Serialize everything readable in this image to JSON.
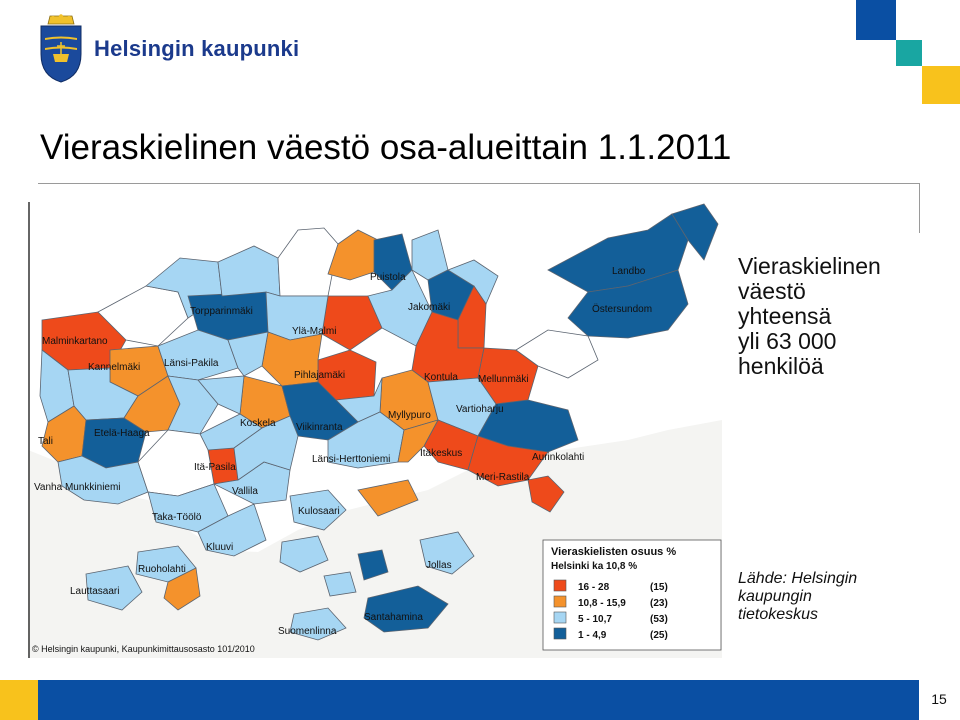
{
  "header": {
    "brand": "Helsingin kaupunki",
    "logo_icon": "helsinki-coat-of-arms-icon"
  },
  "title": "Vieraskielinen väestö osa-alueittain 1.1.2011",
  "map": {
    "districts": [
      "Puistola",
      "Landbo",
      "Torpparinmäki",
      "Jakomäki",
      "Östersundom",
      "Malminkartano",
      "Ylä-Malmi",
      "Kannelmäki",
      "Länsi-Pakila",
      "Pihlajamäki",
      "Kontula",
      "Mellunmäki",
      "Myllypuro",
      "Vartioharju",
      "Koskela",
      "Viikinranta",
      "Tali",
      "Etelä-Haaga",
      "Itäkeskus",
      "Länsi-Herttoniemi",
      "Aurinkolahti",
      "Itä-Pasila",
      "Meri-Rastila",
      "Vanha Munkkiniemi",
      "Vallila",
      "Kulosaari",
      "Taka-Töölö",
      "Kluuvi",
      "Jollas",
      "Ruoholahti",
      "Lauttasaari",
      "Santahamina",
      "Suomenlinna"
    ],
    "credit": "© Helsingin kaupunki, Kaupunkimittausosasto 101/2010",
    "legend": {
      "title": "Vieraskielisten osuus %",
      "subtitle": "Helsinki ka 10,8 %",
      "classes": [
        {
          "range": "16   - 28",
          "count": "(15)",
          "color": "#ee4a1b"
        },
        {
          "range": "10,8 - 15,9",
          "count": "(23)",
          "color": "#f4922c"
        },
        {
          "range": "5    - 10,7",
          "count": "(53)",
          "color": "#a6d6f3"
        },
        {
          "range": "1    - 4,9",
          "count": "(25)",
          "color": "#135f99"
        }
      ]
    },
    "colors": {
      "sea": "#f4f4f2",
      "background": "#ffffff",
      "border": "#5b6470"
    }
  },
  "callout": {
    "lines": [
      "Vieraskielinen",
      "väestö",
      "yhteensä",
      "yli 63 000",
      "henkilöä"
    ]
  },
  "source": {
    "lines": [
      "Lähde: Helsingin",
      "kaupungin",
      "tietokeskus"
    ]
  },
  "footer": {
    "page_number": "15"
  },
  "colors": {
    "brand_blue": "#0a4fa3",
    "accent_yellow": "#f8c21c",
    "accent_teal": "#19a6a2",
    "title_rule": "#9a9a9a"
  }
}
